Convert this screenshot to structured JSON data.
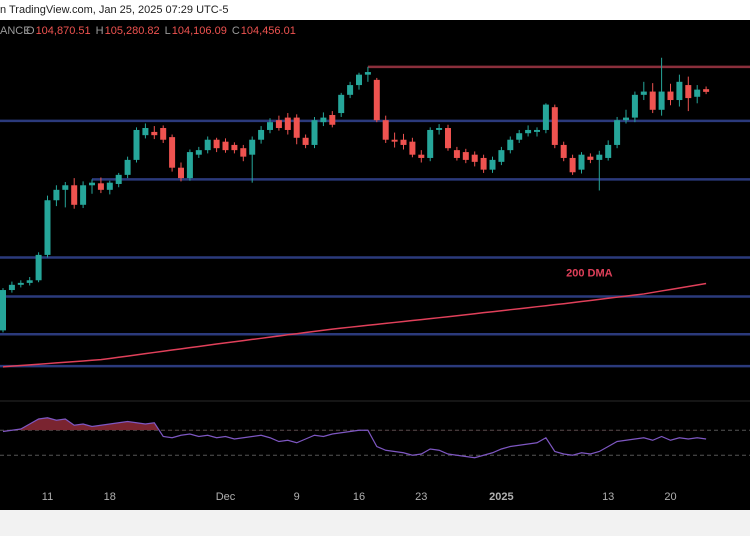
{
  "header": {
    "source": "n TradingView.com, Jan 25, 2025 07:29 UTC-5",
    "symbol": "ANCE",
    "ohlc": [
      {
        "key": "O",
        "value": "104,870.51"
      },
      {
        "key": "H",
        "value": "105,280.82"
      },
      {
        "key": "L",
        "value": "104,106.09"
      },
      {
        "key": "C",
        "value": "104,456.01"
      }
    ]
  },
  "chart_data": {
    "type": "candlestick",
    "categories": [
      null,
      null,
      null,
      null,
      null,
      "11",
      null,
      null,
      null,
      null,
      null,
      null,
      "18",
      null,
      null,
      null,
      null,
      null,
      null,
      null,
      null,
      null,
      null,
      null,
      null,
      "Dec",
      null,
      null,
      null,
      null,
      null,
      null,
      null,
      "9",
      null,
      null,
      null,
      null,
      null,
      null,
      "16",
      null,
      null,
      null,
      null,
      null,
      null,
      "23",
      null,
      null,
      null,
      null,
      null,
      null,
      null,
      null,
      "2025",
      null,
      null,
      null,
      null,
      null,
      null,
      null,
      null,
      null,
      null,
      null,
      "13",
      null,
      null,
      null,
      null,
      null,
      null,
      "20",
      null,
      null,
      null,
      null
    ],
    "open": [
      67800,
      74000,
      74800,
      75100,
      75500,
      79400,
      87800,
      89400,
      90100,
      87100,
      90100,
      90400,
      89400,
      90300,
      91700,
      94000,
      97800,
      98300,
      98900,
      97500,
      92800,
      91200,
      94800,
      95500,
      97100,
      96800,
      96300,
      95800,
      94800,
      97100,
      98600,
      100100,
      100500,
      100500,
      97400,
      96300,
      99800,
      100900,
      101200,
      104000,
      105500,
      107100,
      106300,
      100100,
      97100,
      97100,
      96800,
      94800,
      94300,
      98600,
      98900,
      95500,
      95200,
      94800,
      94300,
      92500,
      93700,
      95500,
      97100,
      98100,
      98300,
      98600,
      102100,
      96300,
      94300,
      92500,
      94500,
      94000,
      94300,
      96300,
      100100,
      100500,
      104000,
      104500,
      101700,
      104500,
      103200,
      105500,
      103700,
      104870.51
    ],
    "high": [
      74300,
      75300,
      75500,
      76000,
      79800,
      88500,
      90100,
      90600,
      91200,
      90700,
      91000,
      91300,
      90800,
      92000,
      94500,
      99000,
      99600,
      99200,
      99300,
      97900,
      93600,
      95600,
      96000,
      97600,
      97400,
      97300,
      96700,
      96300,
      97600,
      99200,
      100400,
      100800,
      101200,
      101000,
      97900,
      100600,
      101300,
      101500,
      104300,
      106000,
      107400,
      108300,
      106600,
      100800,
      98200,
      98000,
      97400,
      95500,
      99000,
      99500,
      99400,
      96000,
      95700,
      95300,
      94800,
      94500,
      96000,
      97600,
      98600,
      99300,
      99000,
      102700,
      102500,
      96800,
      94800,
      95200,
      95000,
      95400,
      97000,
      100600,
      101700,
      104500,
      106000,
      105800,
      109700,
      105700,
      107100,
      106800,
      105500,
      105280.82
    ],
    "low": [
      67500,
      73600,
      74400,
      74700,
      75200,
      79000,
      86900,
      86700,
      86500,
      86600,
      88800,
      88900,
      88700,
      89800,
      91200,
      93600,
      97300,
      97200,
      96600,
      92200,
      90700,
      90800,
      94300,
      95000,
      95200,
      95100,
      95000,
      93800,
      90500,
      96500,
      98100,
      98500,
      97900,
      96400,
      95800,
      95800,
      99200,
      99000,
      100600,
      103500,
      104800,
      106000,
      99800,
      96600,
      95900,
      95600,
      94400,
      93600,
      93800,
      97900,
      95400,
      93900,
      93500,
      93000,
      92000,
      92000,
      93200,
      95000,
      96600,
      97600,
      97600,
      98100,
      95800,
      93800,
      91700,
      91900,
      93500,
      89300,
      93900,
      95800,
      99600,
      99800,
      103200,
      101200,
      100800,
      102400,
      102200,
      101500,
      102700,
      104106.09
    ],
    "close": [
      74000,
      74800,
      75100,
      75500,
      79400,
      87800,
      89400,
      90100,
      87100,
      90100,
      90500,
      89400,
      90500,
      91700,
      94000,
      98600,
      98900,
      97800,
      97100,
      92800,
      91200,
      95200,
      95500,
      97100,
      95800,
      95500,
      95500,
      94500,
      97100,
      98600,
      99800,
      98900,
      98600,
      97400,
      96300,
      100100,
      100500,
      99400,
      104000,
      105500,
      107100,
      107500,
      100100,
      97100,
      96800,
      96300,
      94800,
      94300,
      98600,
      98900,
      95800,
      94300,
      94000,
      93700,
      92500,
      94000,
      95500,
      97100,
      98100,
      98600,
      98600,
      102500,
      96300,
      94300,
      92100,
      94800,
      94000,
      94800,
      96300,
      100100,
      100500,
      104000,
      104500,
      101700,
      104500,
      103200,
      106000,
      103500,
      104800,
      104456.01
    ],
    "up_color": "#26a69a",
    "down_color": "#ef5350",
    "ylim": [
      57100,
      115500
    ],
    "levels": [
      {
        "value": 108300,
        "color": "#8b2f3c"
      },
      {
        "value": 100000,
        "color": "#2b3a7c"
      },
      {
        "value": 91000,
        "color": "#2b3a7c"
      },
      {
        "value": 79000,
        "color": "#2b3a7c"
      },
      {
        "value": 73000,
        "color": "#2b3a7c"
      },
      {
        "value": 67200,
        "color": "#2b3a7c"
      },
      {
        "value": 62300,
        "color": "#2b3a7c"
      }
    ],
    "ma": {
      "name": "200 DMA",
      "color": "#e0405a",
      "values": [
        62200,
        62300,
        62400,
        62500,
        62600,
        62700,
        62800,
        62900,
        63000,
        63100,
        63200,
        63300,
        63480,
        63670,
        63850,
        64040,
        64220,
        64410,
        64590,
        64780,
        64960,
        65150,
        65330,
        65520,
        65700,
        65880,
        66050,
        66230,
        66410,
        66580,
        66760,
        66940,
        67120,
        67290,
        67470,
        67650,
        67820,
        68000,
        68150,
        68290,
        68440,
        68580,
        68730,
        68880,
        69020,
        69170,
        69320,
        69460,
        69610,
        69750,
        69900,
        70050,
        70210,
        70360,
        70520,
        70670,
        70820,
        70980,
        71130,
        71280,
        71440,
        71590,
        71750,
        71900,
        72070,
        72230,
        72400,
        72570,
        72730,
        72900,
        73070,
        73230,
        73400,
        73630,
        73860,
        74090,
        74310,
        74540,
        74770,
        75000
      ]
    },
    "rsi": {
      "color": "#7e57c2",
      "overbought_fill": "#7a2430",
      "ylim": [
        0,
        100
      ],
      "bands": [
        70,
        30
      ],
      "values": [
        68,
        70,
        72,
        80,
        88,
        90,
        86,
        88,
        78,
        80,
        76,
        78,
        80,
        82,
        84,
        82,
        80,
        82,
        60,
        58,
        62,
        64,
        60,
        62,
        58,
        60,
        56,
        58,
        60,
        62,
        58,
        52,
        54,
        50,
        56,
        62,
        60,
        64,
        66,
        68,
        70,
        70,
        44,
        38,
        36,
        34,
        30,
        32,
        40,
        38,
        32,
        30,
        28,
        26,
        30,
        34,
        40,
        44,
        46,
        48,
        50,
        58,
        36,
        32,
        30,
        34,
        32,
        36,
        44,
        52,
        54,
        56,
        58,
        54,
        60,
        54,
        58,
        56,
        58,
        56
      ]
    }
  }
}
